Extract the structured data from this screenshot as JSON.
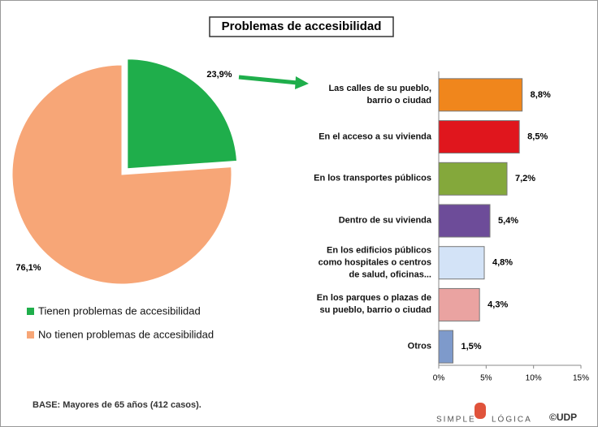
{
  "title": "Problemas de accesibilidad",
  "chart_data": [
    {
      "type": "pie",
      "categories": [
        "Tienen problemas de accesibilidad",
        "No tienen problemas de accesibilidad"
      ],
      "values": [
        23.9,
        76.1
      ],
      "value_labels": [
        "23,9%",
        "76,1%"
      ],
      "colors": [
        "#1fae4b",
        "#f7a677"
      ]
    },
    {
      "type": "bar",
      "orientation": "horizontal",
      "categories": [
        "Las calles de su pueblo,\nbarrio o ciudad",
        "En el acceso a su vivienda",
        "En los transportes públicos",
        "Dentro de su vivienda",
        "En los edificios públicos\ncomo hospitales o centros\nde salud, oficinas...",
        "En los parques o plazas de\nsu pueblo, barrio o ciudad",
        "Otros"
      ],
      "values": [
        8.8,
        8.5,
        7.2,
        5.4,
        4.8,
        4.3,
        1.5
      ],
      "value_labels": [
        "8,8%",
        "8,5%",
        "7,2%",
        "5,4%",
        "4,8%",
        "4,3%",
        "1,5%"
      ],
      "colors": [
        "#f0861c",
        "#e0161d",
        "#84a83b",
        "#6d4c99",
        "#d3e3f7",
        "#eaa3a1",
        "#7e9acb"
      ],
      "xlim": [
        0,
        15
      ],
      "xticks": [
        {
          "value": 0,
          "label": "0%"
        },
        {
          "value": 5,
          "label": "5%"
        },
        {
          "value": 10,
          "label": "10%"
        },
        {
          "value": 15,
          "label": "15%"
        }
      ]
    }
  ],
  "footer": "BASE: Mayores de 65 años (412 casos).",
  "logo": {
    "left": "SIMPLE",
    "right": "LÓGICA",
    "copyright": "©UDP"
  }
}
